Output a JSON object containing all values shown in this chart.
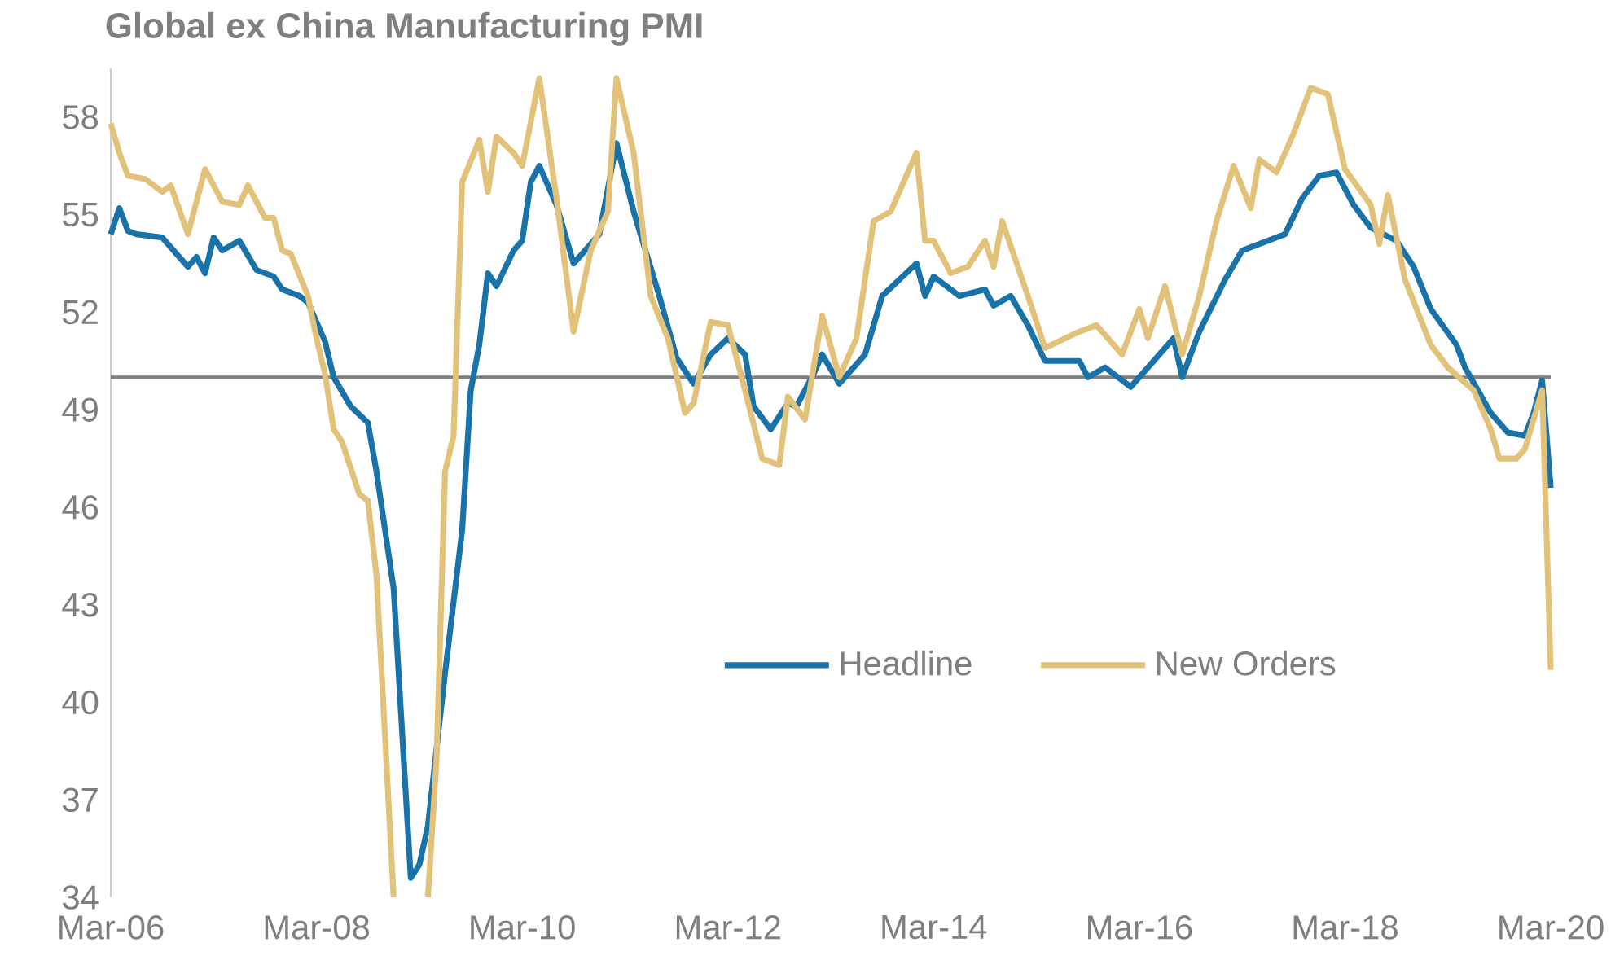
{
  "chart_data": {
    "type": "line",
    "title": "Global ex China Manufacturing PMI",
    "xlim": [
      "2006-03",
      "2020-03"
    ],
    "ylim": [
      34,
      59.5
    ],
    "xticks": [
      {
        "value": "2006-03",
        "label": "Mar-06"
      },
      {
        "value": "2008-03",
        "label": "Mar-08"
      },
      {
        "value": "2010-03",
        "label": "Mar-10"
      },
      {
        "value": "2012-03",
        "label": "Mar-12"
      },
      {
        "value": "2014-03",
        "label": "Mar-14"
      },
      {
        "value": "2016-03",
        "label": "Mar-16"
      },
      {
        "value": "2018-03",
        "label": "Mar-18"
      },
      {
        "value": "2020-03",
        "label": "Mar-20"
      }
    ],
    "yticks": [
      34,
      37,
      40,
      43,
      46,
      49,
      52,
      55,
      58
    ],
    "ref_lines": [
      {
        "axis": "y",
        "value": 50,
        "color": "#808080"
      }
    ],
    "legend": "bottom",
    "line_style": "solid",
    "series": [
      {
        "name": "Headline",
        "color": "#1a73a8",
        "x": [
          "2006-03",
          "2006-04",
          "2006-05",
          "2006-06",
          "2006-09",
          "2006-11",
          "2006-12",
          "2007-01",
          "2007-02",
          "2007-03",
          "2007-04",
          "2007-06",
          "2007-08",
          "2007-10",
          "2007-11",
          "2008-01",
          "2008-02",
          "2008-04",
          "2008-05",
          "2008-07",
          "2008-09",
          "2008-10",
          "2008-12",
          "2009-02",
          "2009-03",
          "2009-04",
          "2009-06",
          "2009-08",
          "2009-09",
          "2009-10",
          "2009-11",
          "2009-12",
          "2010-02",
          "2010-03",
          "2010-04",
          "2010-05",
          "2010-07",
          "2010-09",
          "2010-12",
          "2011-02",
          "2011-04",
          "2011-07",
          "2011-09",
          "2011-11",
          "2012-01",
          "2012-03",
          "2012-05",
          "2012-06",
          "2012-08",
          "2012-10",
          "2012-11",
          "2013-01",
          "2013-02",
          "2013-04",
          "2013-07",
          "2013-09",
          "2014-01",
          "2014-02",
          "2014-03",
          "2014-06",
          "2014-09",
          "2014-10",
          "2014-12",
          "2015-02",
          "2015-04",
          "2015-08",
          "2015-09",
          "2015-11",
          "2016-02",
          "2016-04",
          "2016-07",
          "2016-08",
          "2016-10",
          "2017-01",
          "2017-03",
          "2017-05",
          "2017-08",
          "2017-10",
          "2017-12",
          "2018-02",
          "2018-04",
          "2018-06",
          "2018-09",
          "2018-11",
          "2019-01",
          "2019-04",
          "2019-05",
          "2019-08",
          "2019-10",
          "2019-12",
          "2020-01",
          "2020-02",
          "2020-03"
        ],
        "values": [
          54.4,
          55.2,
          54.5,
          54.4,
          54.3,
          53.7,
          53.4,
          53.7,
          53.2,
          54.3,
          53.9,
          54.2,
          53.3,
          53.1,
          52.7,
          52.5,
          52.3,
          51.1,
          50.0,
          49.1,
          48.6,
          47.1,
          43.5,
          34.6,
          35.0,
          36.2,
          40.9,
          45.3,
          49.6,
          51.0,
          53.2,
          52.8,
          53.9,
          54.2,
          56.0,
          56.5,
          55.3,
          53.5,
          54.4,
          57.2,
          55.1,
          52.5,
          50.6,
          49.8,
          50.7,
          51.2,
          50.7,
          49.1,
          48.4,
          49.2,
          49.1,
          50.1,
          50.7,
          49.8,
          50.7,
          52.5,
          53.5,
          52.5,
          53.1,
          52.5,
          52.7,
          52.2,
          52.5,
          51.6,
          50.5,
          50.5,
          50.0,
          50.3,
          49.7,
          50.3,
          51.2,
          50.0,
          51.4,
          53.0,
          53.9,
          54.1,
          54.4,
          55.5,
          56.2,
          56.3,
          55.3,
          54.6,
          54.2,
          53.4,
          52.1,
          51.0,
          50.3,
          48.9,
          48.3,
          48.2,
          48.9,
          49.9,
          46.6
        ]
      },
      {
        "name": "New Orders",
        "color": "#e2c17a",
        "x": [
          "2006-03",
          "2006-04",
          "2006-05",
          "2006-07",
          "2006-09",
          "2006-10",
          "2006-12",
          "2007-02",
          "2007-04",
          "2007-06",
          "2007-07",
          "2007-09",
          "2007-10",
          "2007-11",
          "2007-12",
          "2008-02",
          "2008-03",
          "2008-04",
          "2008-05",
          "2008-06",
          "2008-08",
          "2008-09",
          "2008-10",
          "2008-12",
          "2009-02",
          "2009-04",
          "2009-05",
          "2009-06",
          "2009-07",
          "2009-08",
          "2009-10",
          "2009-11",
          "2009-12",
          "2010-02",
          "2010-03",
          "2010-05",
          "2010-07",
          "2010-09",
          "2010-11",
          "2011-01",
          "2011-02",
          "2011-04",
          "2011-06",
          "2011-08",
          "2011-10",
          "2011-11",
          "2012-01",
          "2012-03",
          "2012-05",
          "2012-07",
          "2012-09",
          "2012-10",
          "2012-12",
          "2013-02",
          "2013-04",
          "2013-06",
          "2013-08",
          "2013-10",
          "2014-01",
          "2014-02",
          "2014-03",
          "2014-05",
          "2014-07",
          "2014-09",
          "2014-10",
          "2014-11",
          "2015-02",
          "2015-04",
          "2015-08",
          "2015-10",
          "2016-01",
          "2016-03",
          "2016-04",
          "2016-06",
          "2016-08",
          "2016-10",
          "2016-12",
          "2017-02",
          "2017-04",
          "2017-05",
          "2017-07",
          "2017-09",
          "2017-11",
          "2018-01",
          "2018-03",
          "2018-06",
          "2018-07",
          "2018-08",
          "2018-10",
          "2019-01",
          "2019-03",
          "2019-06",
          "2019-08",
          "2019-09",
          "2019-11",
          "2019-12",
          "2020-02",
          "2020-03"
        ],
        "values": [
          57.8,
          56.9,
          56.2,
          56.1,
          55.7,
          55.9,
          54.4,
          56.4,
          55.4,
          55.3,
          55.9,
          54.9,
          54.9,
          53.9,
          53.8,
          52.5,
          51.2,
          50.1,
          48.4,
          48.0,
          46.4,
          46.2,
          43.9,
          34.0,
          null,
          34.0,
          38.2,
          47.1,
          48.2,
          56.0,
          57.3,
          55.7,
          57.4,
          56.9,
          56.5,
          59.2,
          55.5,
          51.4,
          53.9,
          55.1,
          59.2,
          56.9,
          52.5,
          51.2,
          48.9,
          49.2,
          51.7,
          51.6,
          49.6,
          47.5,
          47.3,
          49.4,
          48.7,
          51.9,
          50.0,
          51.2,
          54.8,
          55.1,
          56.9,
          54.2,
          54.2,
          53.2,
          53.4,
          54.2,
          53.4,
          54.8,
          52.5,
          50.9,
          51.4,
          51.6,
          50.7,
          52.1,
          51.2,
          52.8,
          50.7,
          52.5,
          54.8,
          56.5,
          55.2,
          56.7,
          56.3,
          57.5,
          58.9,
          58.7,
          56.4,
          55.3,
          54.1,
          55.6,
          53.0,
          51.0,
          50.3,
          49.6,
          48.4,
          47.5,
          47.5,
          47.8,
          49.6,
          41.0
        ]
      }
    ]
  }
}
